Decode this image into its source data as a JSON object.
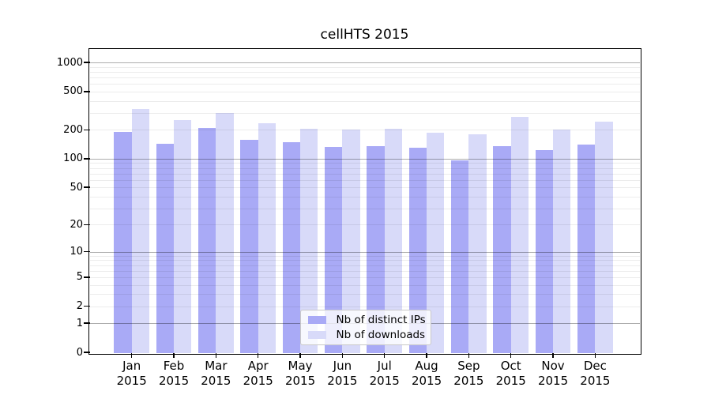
{
  "chart_data": {
    "type": "bar",
    "title": "cellHTS 2015",
    "categories": [
      "Jan",
      "Feb",
      "Mar",
      "Apr",
      "May",
      "Jun",
      "Jul",
      "Aug",
      "Sep",
      "Oct",
      "Nov",
      "Dec"
    ],
    "year_label": "2015",
    "series": [
      {
        "name": "Nb of distinct IPs",
        "color": "#a9aaf6",
        "values": [
          190,
          142,
          208,
          157,
          150,
          132,
          136,
          131,
          96,
          136,
          124,
          141
        ]
      },
      {
        "name": "Nb of downloads",
        "color": "#d8daf9",
        "values": [
          328,
          251,
          302,
          232,
          205,
          200,
          204,
          185,
          179,
          274,
          203,
          242
        ]
      }
    ],
    "xlabel": "",
    "ylabel": "",
    "y_axis": {
      "scale": "log1p",
      "tick_values": [
        0,
        1,
        2,
        5,
        10,
        20,
        50,
        100,
        200,
        500,
        1000
      ],
      "range": [
        0,
        1380
      ]
    },
    "grid": {
      "major_values": [
        1,
        10,
        100,
        1000
      ],
      "minor_values": [
        2,
        3,
        4,
        5,
        6,
        7,
        8,
        9,
        20,
        30,
        40,
        50,
        60,
        70,
        80,
        90,
        200,
        300,
        400,
        500,
        600,
        700,
        800,
        900
      ],
      "enabled": true
    },
    "legend": {
      "position": "bottom-center"
    }
  }
}
